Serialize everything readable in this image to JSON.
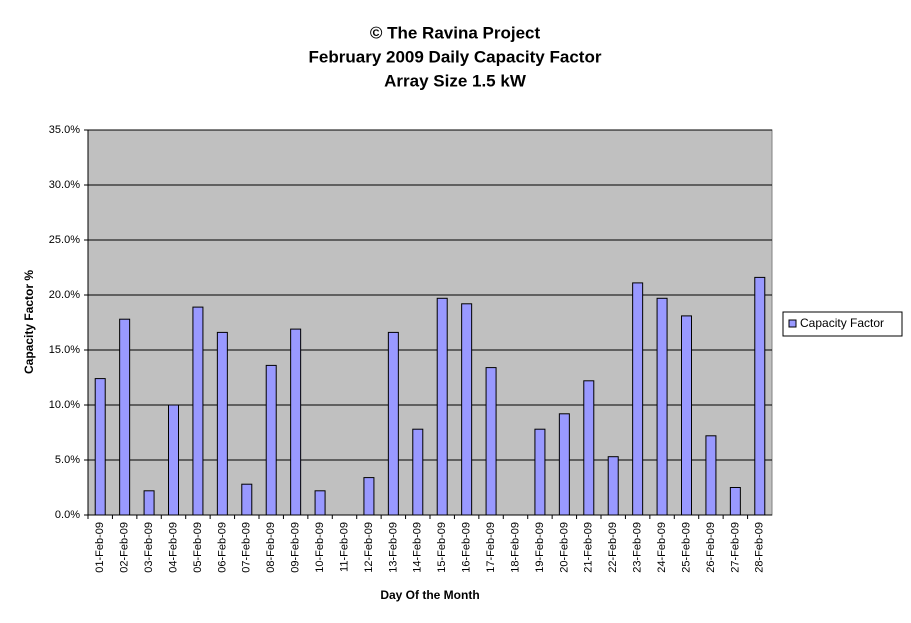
{
  "chart_data": {
    "type": "bar",
    "title": [
      "© The Ravina Project",
      "February 2009 Daily Capacity Factor",
      "Array Size 1.5 kW"
    ],
    "x_label": "Day Of the Month",
    "y_label": "Capacity Factor %",
    "categories": [
      "01-Feb-09",
      "02-Feb-09",
      "03-Feb-09",
      "04-Feb-09",
      "05-Feb-09",
      "06-Feb-09",
      "07-Feb-09",
      "08-Feb-09",
      "09-Feb-09",
      "10-Feb-09",
      "11-Feb-09",
      "12-Feb-09",
      "13-Feb-09",
      "14-Feb-09",
      "15-Feb-09",
      "16-Feb-09",
      "17-Feb-09",
      "18-Feb-09",
      "19-Feb-09",
      "20-Feb-09",
      "21-Feb-09",
      "22-Feb-09",
      "23-Feb-09",
      "24-Feb-09",
      "25-Feb-09",
      "26-Feb-09",
      "27-Feb-09",
      "28-Feb-09"
    ],
    "series": [
      {
        "name": "Capacity Factor",
        "color": "#9999ff",
        "values": [
          12.4,
          17.8,
          2.2,
          10.0,
          18.9,
          16.6,
          2.8,
          13.6,
          16.9,
          2.2,
          0,
          3.4,
          16.6,
          7.8,
          19.7,
          19.2,
          13.4,
          0,
          7.8,
          9.2,
          12.2,
          5.3,
          21.1,
          19.7,
          18.1,
          7.2,
          2.5,
          21.6
        ]
      }
    ],
    "ylim": [
      0,
      35
    ],
    "yticks": [
      {
        "value": 0,
        "label": "0.0%"
      },
      {
        "value": 5,
        "label": "5.0%"
      },
      {
        "value": 10,
        "label": "10.0%"
      },
      {
        "value": 15,
        "label": "15.0%"
      },
      {
        "value": 20,
        "label": "20.0%"
      },
      {
        "value": 25,
        "label": "25.0%"
      },
      {
        "value": 30,
        "label": "30.0%"
      },
      {
        "value": 35,
        "label": "35.0%"
      }
    ],
    "grid": true,
    "legend": "right"
  }
}
